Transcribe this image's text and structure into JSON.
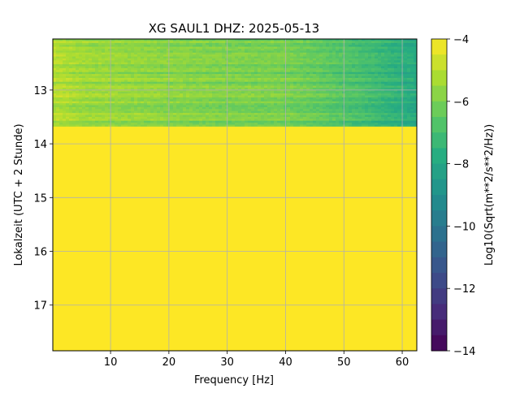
{
  "chart_data": {
    "type": "heatmap",
    "title": "XG SAUL1  DHZ: 2025-05-13",
    "xlabel": "Frequency [Hz]",
    "ylabel": "Lokalzeit (UTC + 2 Stunde)",
    "colorbar_label": "Log10(Sqrt(m**2/s**2/Hz))",
    "colormap": "viridis",
    "x_ticks": [
      "10",
      "20",
      "30",
      "40",
      "50",
      "60"
    ],
    "x_tick_values": [
      10,
      20,
      30,
      40,
      50,
      60
    ],
    "y_ticks": [
      "13",
      "14",
      "15",
      "16",
      "17"
    ],
    "y_tick_values": [
      13,
      14,
      15,
      16,
      17
    ],
    "colorbar_ticks": [
      "−4",
      "−6",
      "−8",
      "−10",
      "−12",
      "−14"
    ],
    "colorbar_tick_values": [
      -4,
      -6,
      -8,
      -10,
      -12,
      -14
    ],
    "xlim": [
      0.1,
      62.5
    ],
    "ylim": [
      17.85,
      12.05
    ],
    "clim": [
      -14,
      -4
    ],
    "grid": true,
    "data_region": {
      "time_end": 13.68,
      "fill_value_after_end": -4,
      "frequency_profile": {
        "x": [
          0.1,
          5,
          10,
          20,
          30,
          40,
          45,
          50,
          55,
          60,
          62.5
        ],
        "value": [
          -5.1,
          -5.5,
          -5.6,
          -5.8,
          -6.0,
          -6.1,
          -6.4,
          -6.8,
          -7.2,
          -7.7,
          -8.0
        ]
      }
    }
  }
}
